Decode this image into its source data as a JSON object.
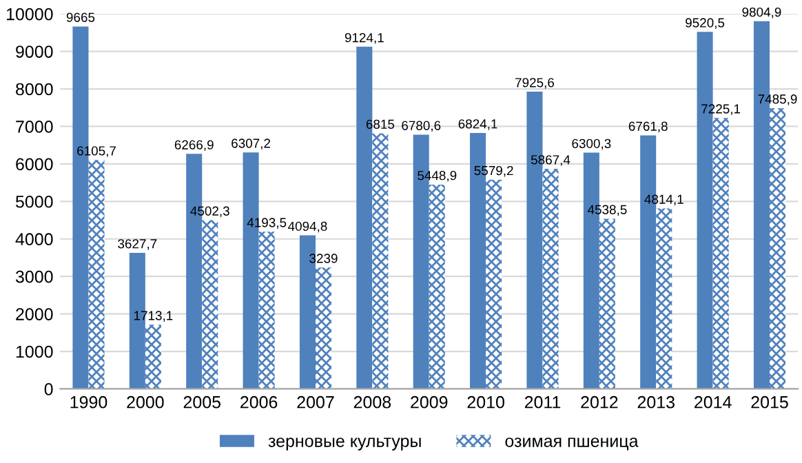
{
  "chart_data": {
    "type": "bar",
    "categories": [
      "1990",
      "2000",
      "2005",
      "2006",
      "2007",
      "2008",
      "2009",
      "2010",
      "2011",
      "2012",
      "2013",
      "2014",
      "2015"
    ],
    "series": [
      {
        "name": "зерновые культуры",
        "color": "#4f81bd",
        "values": [
          9665,
          3627.7,
          6266.9,
          6307.2,
          4094.8,
          9124.1,
          6780.6,
          6824.1,
          7925.6,
          6300.3,
          6761.8,
          9520.5,
          9804.9
        ],
        "value_labels": [
          "9665",
          "3627,7",
          "6266,9",
          "6307,2",
          "4094,8",
          "9124,1",
          "6780,6",
          "6824,1",
          "7925,6",
          "6300,3",
          "6761,8",
          "9520,5",
          "9804,9"
        ]
      },
      {
        "name": "озимая пшеница",
        "color": "#4f81bd",
        "values": [
          6105.7,
          1713.1,
          4502.3,
          4193.5,
          3239,
          6815,
          5448.9,
          5579.2,
          5867.4,
          4538.5,
          4814.1,
          7225.1,
          7485.9
        ],
        "value_labels": [
          "6105,7",
          "1713,1",
          "4502,3",
          "4193,5",
          "3239",
          "6815",
          "5448,9",
          "5579,2",
          "5867,4",
          "4538,5",
          "4814,1",
          "7225,1",
          "7485,9"
        ]
      }
    ],
    "ylim": [
      0,
      10000
    ],
    "yticks": [
      0,
      1000,
      2000,
      3000,
      4000,
      5000,
      6000,
      7000,
      8000,
      9000,
      10000
    ],
    "grid": "y",
    "legend": "bottom"
  }
}
